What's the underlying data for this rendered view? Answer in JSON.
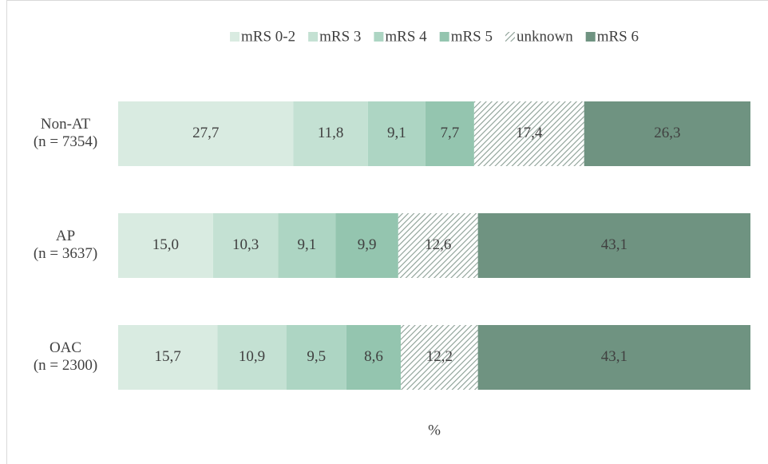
{
  "chart_data": {
    "type": "stacked_barh",
    "categories": [
      [
        "Non-AT",
        "(n = 7354)"
      ],
      [
        "AP",
        "(n = 3637)"
      ],
      [
        "OAC",
        "(n = 2300)"
      ]
    ],
    "series": [
      {
        "name": "mRS 0-2",
        "color": "#d9ebe1",
        "values": [
          27.7,
          15.0,
          15.7
        ],
        "value_labels": [
          "27,7",
          "15,0",
          "15,7"
        ]
      },
      {
        "name": "mRS 3",
        "color": "#c4e1d3",
        "values": [
          11.8,
          10.3,
          10.9
        ],
        "value_labels": [
          "11,8",
          "10,3",
          "10,9"
        ]
      },
      {
        "name": "mRS 4",
        "color": "#add5c3",
        "values": [
          9.1,
          9.1,
          9.5
        ],
        "value_labels": [
          "9,1",
          "9,1",
          "9,5"
        ]
      },
      {
        "name": "mRS 5",
        "color": "#94c5af",
        "values": [
          7.7,
          9.9,
          8.6
        ],
        "value_labels": [
          "7,7",
          "9,9",
          "8,6"
        ]
      },
      {
        "name": "unknown",
        "color": "#8a9e94",
        "pattern": "hatch",
        "values": [
          17.4,
          12.6,
          12.2
        ],
        "value_labels": [
          "17,4",
          "12,6",
          "12,2"
        ]
      },
      {
        "name": "mRS 6",
        "color": "#6f9381",
        "values": [
          26.3,
          43.1,
          43.1
        ],
        "value_labels": [
          "26,3",
          "43,1",
          "43,1"
        ]
      }
    ],
    "xlabel": "%",
    "xlim": [
      0,
      100
    ],
    "legend": "top"
  }
}
